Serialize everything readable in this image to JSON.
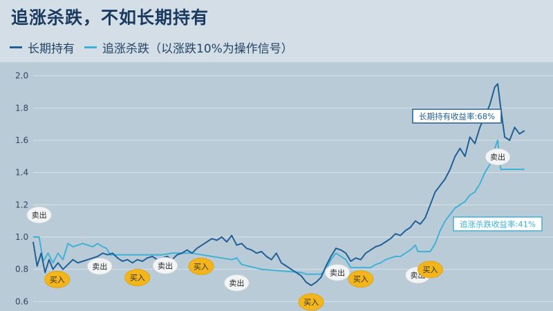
{
  "header": {
    "title": "追涨杀跌，不如长期持有"
  },
  "legend": {
    "items": [
      {
        "label": "长期持有",
        "color": "#1f5f96"
      },
      {
        "label": "追涨杀跌（以涨跌10%为操作信号）",
        "color": "#3fb1d6"
      }
    ]
  },
  "chart_data": {
    "type": "line",
    "title": "追涨杀跌，不如长期持有",
    "ylabel": "",
    "xlabel": "",
    "ylim": [
      0.55,
      2.05
    ],
    "yticks": [
      0.6,
      0.8,
      1.0,
      1.2,
      1.4,
      1.6,
      1.8,
      2.0
    ],
    "xlim": [
      0,
      100
    ],
    "grid": "horizontal",
    "legend_position": "top-left",
    "series": [
      {
        "name": "长期持有",
        "color": "#1f5f96",
        "points": [
          [
            0,
            0.97
          ],
          [
            0.8,
            0.82
          ],
          [
            1.6,
            0.9
          ],
          [
            2.4,
            0.78
          ],
          [
            3.2,
            0.86
          ],
          [
            4,
            0.8
          ],
          [
            5,
            0.84
          ],
          [
            6,
            0.8
          ],
          [
            7,
            0.83
          ],
          [
            8,
            0.86
          ],
          [
            9,
            0.84
          ],
          [
            10,
            0.85
          ],
          [
            11,
            0.86
          ],
          [
            12,
            0.87
          ],
          [
            13,
            0.88
          ],
          [
            14,
            0.9
          ],
          [
            15,
            0.89
          ],
          [
            16,
            0.9
          ],
          [
            17,
            0.87
          ],
          [
            18,
            0.85
          ],
          [
            19,
            0.86
          ],
          [
            20,
            0.84
          ],
          [
            21,
            0.86
          ],
          [
            22,
            0.85
          ],
          [
            23,
            0.87
          ],
          [
            24,
            0.88
          ],
          [
            25,
            0.86
          ],
          [
            26,
            0.87
          ],
          [
            27,
            0.88
          ],
          [
            28,
            0.86
          ],
          [
            29,
            0.89
          ],
          [
            30,
            0.9
          ],
          [
            31,
            0.92
          ],
          [
            32,
            0.9
          ],
          [
            33,
            0.93
          ],
          [
            34,
            0.95
          ],
          [
            35,
            0.97
          ],
          [
            36,
            0.99
          ],
          [
            37,
            0.98
          ],
          [
            38,
            1.0
          ],
          [
            39,
            0.97
          ],
          [
            40,
            1.01
          ],
          [
            41,
            0.95
          ],
          [
            42,
            0.96
          ],
          [
            43,
            0.93
          ],
          [
            44,
            0.92
          ],
          [
            45,
            0.9
          ],
          [
            46,
            0.91
          ],
          [
            47,
            0.88
          ],
          [
            48,
            0.86
          ],
          [
            49,
            0.9
          ],
          [
            50,
            0.84
          ],
          [
            51,
            0.82
          ],
          [
            52,
            0.8
          ],
          [
            53,
            0.78
          ],
          [
            54,
            0.76
          ],
          [
            55,
            0.72
          ],
          [
            56,
            0.7
          ],
          [
            57,
            0.72
          ],
          [
            58,
            0.75
          ],
          [
            59,
            0.82
          ],
          [
            60,
            0.88
          ],
          [
            61,
            0.93
          ],
          [
            62,
            0.92
          ],
          [
            63,
            0.9
          ],
          [
            64,
            0.85
          ],
          [
            65,
            0.87
          ],
          [
            66,
            0.86
          ],
          [
            67,
            0.9
          ],
          [
            68,
            0.92
          ],
          [
            69,
            0.94
          ],
          [
            70,
            0.95
          ],
          [
            71,
            0.97
          ],
          [
            72,
            0.99
          ],
          [
            73,
            1.02
          ],
          [
            74,
            1.01
          ],
          [
            75,
            1.04
          ],
          [
            76,
            1.06
          ],
          [
            77,
            1.1
          ],
          [
            78,
            1.08
          ],
          [
            79,
            1.12
          ],
          [
            80,
            1.2
          ],
          [
            81,
            1.28
          ],
          [
            82,
            1.32
          ],
          [
            83,
            1.36
          ],
          [
            84,
            1.42
          ],
          [
            85,
            1.5
          ],
          [
            86,
            1.55
          ],
          [
            87,
            1.5
          ],
          [
            88,
            1.62
          ],
          [
            89,
            1.58
          ],
          [
            90,
            1.68
          ],
          [
            91,
            1.75
          ],
          [
            92,
            1.82
          ],
          [
            93,
            1.93
          ],
          [
            93.6,
            1.95
          ],
          [
            94.2,
            1.8
          ],
          [
            95,
            1.62
          ],
          [
            96,
            1.6
          ],
          [
            97,
            1.68
          ],
          [
            98,
            1.64
          ],
          [
            99,
            1.66
          ]
        ]
      },
      {
        "name": "追涨杀跌（以涨跌10%为操作信号）",
        "color": "#3fb1d6",
        "points": [
          [
            0,
            1.0
          ],
          [
            1.2,
            1.0
          ],
          [
            2,
            0.85
          ],
          [
            3,
            0.9
          ],
          [
            4,
            0.84
          ],
          [
            5,
            0.9
          ],
          [
            6,
            0.86
          ],
          [
            7,
            0.96
          ],
          [
            8,
            0.94
          ],
          [
            9,
            0.95
          ],
          [
            10,
            0.96
          ],
          [
            11,
            0.95
          ],
          [
            12,
            0.94
          ],
          [
            13,
            0.96
          ],
          [
            14,
            0.94
          ],
          [
            14.8,
            0.93
          ],
          [
            15.5,
            0.89
          ],
          [
            18,
            0.89
          ],
          [
            22,
            0.89
          ],
          [
            26,
            0.89
          ],
          [
            28,
            0.9
          ],
          [
            30,
            0.9
          ],
          [
            32,
            0.9
          ],
          [
            34,
            0.89
          ],
          [
            36,
            0.88
          ],
          [
            38,
            0.87
          ],
          [
            40,
            0.86
          ],
          [
            41,
            0.87
          ],
          [
            42,
            0.83
          ],
          [
            46,
            0.8
          ],
          [
            50,
            0.79
          ],
          [
            54,
            0.78
          ],
          [
            55,
            0.77
          ],
          [
            58,
            0.77
          ],
          [
            59,
            0.8
          ],
          [
            60,
            0.86
          ],
          [
            61,
            0.9
          ],
          [
            62,
            0.88
          ],
          [
            63,
            0.86
          ],
          [
            64,
            0.81
          ],
          [
            68,
            0.81
          ],
          [
            69,
            0.83
          ],
          [
            70,
            0.84
          ],
          [
            71,
            0.86
          ],
          [
            72,
            0.87
          ],
          [
            73,
            0.88
          ],
          [
            74,
            0.88
          ],
          [
            75,
            0.9
          ],
          [
            76,
            0.92
          ],
          [
            77,
            0.95
          ],
          [
            77.5,
            0.91
          ],
          [
            80,
            0.91
          ],
          [
            81,
            0.96
          ],
          [
            82,
            1.04
          ],
          [
            83,
            1.1
          ],
          [
            84,
            1.14
          ],
          [
            85,
            1.18
          ],
          [
            86,
            1.2
          ],
          [
            87,
            1.22
          ],
          [
            88,
            1.26
          ],
          [
            89,
            1.28
          ],
          [
            90,
            1.33
          ],
          [
            91,
            1.4
          ],
          [
            92,
            1.45
          ],
          [
            93,
            1.55
          ],
          [
            93.6,
            1.6
          ],
          [
            94.2,
            1.42
          ],
          [
            99,
            1.42
          ]
        ]
      }
    ],
    "annotations": {
      "total_return_labels": [
        {
          "text": "长期持有收益率:68%",
          "series": "长期持有"
        },
        {
          "text": "追涨杀跌收益率:41%",
          "series": "追涨杀跌（以涨跌10%为操作信号）"
        }
      ],
      "signals": [
        {
          "text": "卖出",
          "x": 1.2,
          "y": 1.0
        },
        {
          "text": "买入",
          "x": 4,
          "y": 0.84
        },
        {
          "text": "卖出",
          "x": 14.8,
          "y": 0.93
        },
        {
          "text": "买入",
          "x": 21,
          "y": 0.86
        },
        {
          "text": "卖出",
          "x": 28,
          "y": 0.9
        },
        {
          "text": "买入",
          "x": 33,
          "y": 0.93
        },
        {
          "text": "卖出",
          "x": 41,
          "y": 0.87
        },
        {
          "text": "买入",
          "x": 56,
          "y": 0.7
        },
        {
          "text": "卖出",
          "x": 61,
          "y": 0.9
        },
        {
          "text": "买入",
          "x": 66,
          "y": 0.86
        },
        {
          "text": "卖出",
          "x": 77.5,
          "y": 0.91
        },
        {
          "text": "买入",
          "x": 80,
          "y": 0.91
        },
        {
          "text": "卖出",
          "x": 93.6,
          "y": 1.6
        }
      ]
    }
  }
}
